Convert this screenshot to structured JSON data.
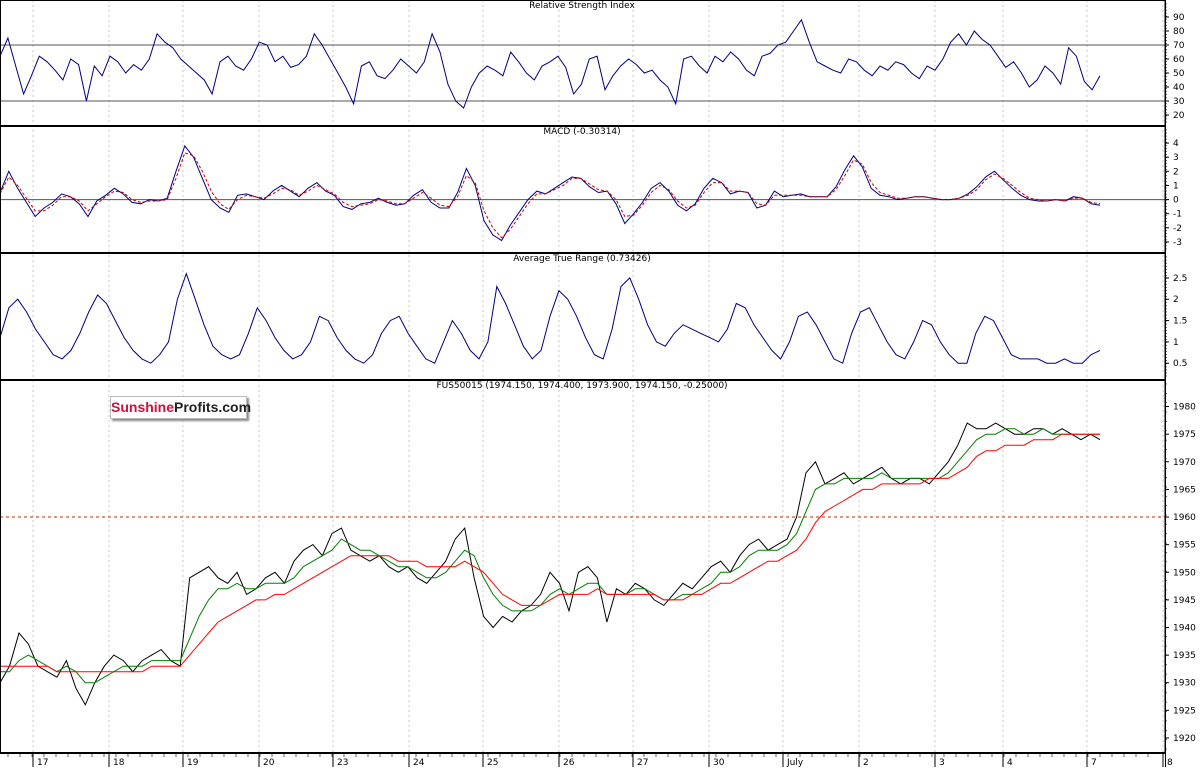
{
  "logo": {
    "part1": "Sunshine",
    "part2": "Profits.com",
    "color1": "#d0103a",
    "color2": "#222222"
  },
  "colors": {
    "grid": "#c8c8c8",
    "border": "#000000",
    "indicator": "#000080",
    "signal": "#cc0000",
    "price": "#000000",
    "ma_fast": "#008000",
    "ma_slow": "#ff0000",
    "reference": "#aa3300"
  },
  "x_axis": {
    "labels": [
      "17",
      "18",
      "19",
      "20",
      "23",
      "24",
      "25",
      "26",
      "27",
      "30",
      "July",
      "2",
      "3",
      "4",
      "7",
      "8"
    ]
  },
  "chart_data": [
    {
      "type": "line",
      "title": "Relative Strength Index",
      "ylim": [
        15,
        95
      ],
      "yticks": [
        20,
        30,
        40,
        50,
        60,
        70,
        80,
        90
      ],
      "reference_lines": [
        30,
        70
      ],
      "series": [
        {
          "values": [
            62,
            75,
            55,
            35,
            48,
            62,
            58,
            52,
            45,
            60,
            56,
            30,
            55,
            48,
            62,
            58,
            50,
            56,
            52,
            60,
            78,
            72,
            68,
            60,
            55,
            50,
            45,
            35,
            58,
            62,
            55,
            52,
            60,
            72,
            70,
            58,
            62,
            54,
            56,
            62,
            78,
            70,
            60,
            50,
            40,
            28,
            55,
            58,
            48,
            46,
            52,
            60,
            55,
            50,
            58,
            78,
            65,
            42,
            30,
            25,
            40,
            50,
            55,
            52,
            48,
            65,
            58,
            50,
            45,
            55,
            58,
            62,
            54,
            35,
            42,
            60,
            62,
            38,
            48,
            55,
            60,
            56,
            50,
            52,
            45,
            40,
            28,
            60,
            62,
            55,
            50,
            62,
            58,
            65,
            60,
            52,
            48,
            62,
            64,
            70,
            72,
            80,
            88,
            72,
            58,
            55,
            52,
            50,
            60,
            58,
            52,
            48,
            55,
            52,
            58,
            56,
            50,
            46,
            55,
            52,
            60,
            72,
            78,
            70,
            80,
            74,
            70,
            62,
            54,
            58,
            50,
            40,
            45,
            55,
            50,
            42,
            68,
            62,
            44,
            38,
            48
          ]
        }
      ]
    },
    {
      "type": "line",
      "title": "MACD (-0.30314)",
      "ylim": [
        -3.5,
        4.5
      ],
      "yticks": [
        -3,
        -2,
        -1,
        0,
        1,
        2,
        3,
        4
      ],
      "reference_lines": [
        0
      ],
      "series": [
        {
          "values": [
            0.5,
            2.0,
            0.8,
            -0.2,
            -1.2,
            -0.6,
            -0.2,
            0.4,
            0.2,
            -0.3,
            -1.2,
            -0.1,
            0.3,
            0.8,
            0.4,
            -0.2,
            -0.3,
            0.0,
            -0.1,
            0.1,
            2.0,
            3.8,
            3.0,
            1.5,
            0.0,
            -0.6,
            -0.9,
            0.3,
            0.4,
            0.2,
            0.0,
            0.6,
            1.0,
            0.6,
            0.2,
            0.8,
            1.2,
            0.6,
            0.3,
            -0.5,
            -0.7,
            -0.3,
            -0.2,
            0.1,
            -0.2,
            -0.4,
            -0.3,
            0.3,
            0.7,
            -0.2,
            -0.6,
            -0.6,
            0.5,
            2.2,
            1.0,
            -1.5,
            -2.5,
            -2.9,
            -1.8,
            -0.9,
            0.0,
            0.6,
            0.4,
            0.8,
            1.2,
            1.6,
            1.5,
            0.9,
            0.5,
            0.6,
            -0.3,
            -1.7,
            -1.0,
            -0.2,
            0.8,
            1.2,
            0.6,
            -0.4,
            -0.8,
            -0.3,
            0.8,
            1.5,
            1.2,
            0.4,
            0.6,
            0.5,
            -0.6,
            -0.4,
            0.6,
            0.2,
            0.3,
            0.4,
            0.2,
            0.2,
            0.2,
            0.9,
            2.1,
            3.1,
            2.3,
            0.8,
            0.3,
            0.2,
            0.0,
            0.1,
            0.2,
            0.2,
            0.1,
            0.0,
            0.0,
            0.1,
            0.4,
            0.9,
            1.6,
            2.0,
            1.4,
            0.8,
            0.3,
            0.0,
            -0.1,
            -0.1,
            0.0,
            -0.1,
            0.2,
            0.1,
            -0.3,
            -0.4
          ]
        },
        {
          "values": [
            0.4,
            1.6,
            1.0,
            0.1,
            -0.8,
            -0.8,
            -0.4,
            0.2,
            0.2,
            -0.1,
            -0.8,
            -0.3,
            0.2,
            0.6,
            0.5,
            0.0,
            -0.2,
            -0.1,
            -0.1,
            0.0,
            1.5,
            3.3,
            3.1,
            2.0,
            0.6,
            -0.3,
            -0.7,
            0.0,
            0.3,
            0.2,
            0.1,
            0.4,
            0.8,
            0.7,
            0.3,
            0.6,
            1.0,
            0.7,
            0.4,
            -0.2,
            -0.5,
            -0.4,
            -0.3,
            0.0,
            -0.1,
            -0.3,
            -0.3,
            0.1,
            0.5,
            0.1,
            -0.4,
            -0.5,
            0.2,
            1.7,
            1.2,
            -0.8,
            -2.0,
            -2.7,
            -2.1,
            -1.2,
            -0.3,
            0.4,
            0.4,
            0.7,
            1.0,
            1.5,
            1.5,
            1.1,
            0.7,
            0.6,
            0.0,
            -1.2,
            -1.1,
            -0.4,
            0.5,
            1.0,
            0.7,
            -0.1,
            -0.6,
            -0.4,
            0.5,
            1.2,
            1.2,
            0.6,
            0.6,
            0.5,
            -0.3,
            -0.4,
            0.3,
            0.3,
            0.3,
            0.3,
            0.2,
            0.2,
            0.2,
            0.7,
            1.7,
            2.8,
            2.5,
            1.2,
            0.5,
            0.3,
            0.1,
            0.1,
            0.2,
            0.2,
            0.1,
            0.0,
            0.0,
            0.1,
            0.3,
            0.7,
            1.4,
            1.8,
            1.5,
            1.0,
            0.5,
            0.1,
            0.0,
            -0.1,
            0.0,
            -0.1,
            0.1,
            0.1,
            -0.2,
            -0.3
          ]
        }
      ]
    },
    {
      "type": "line",
      "title": "Average True Range (0.73426)",
      "ylim": [
        0.2,
        2.85
      ],
      "yticks": [
        0.5,
        1.0,
        1.5,
        2.0,
        2.5
      ],
      "series": [
        {
          "values": [
            1.1,
            1.8,
            2.0,
            1.7,
            1.3,
            1.0,
            0.7,
            0.6,
            0.8,
            1.2,
            1.7,
            2.1,
            1.9,
            1.5,
            1.1,
            0.8,
            0.6,
            0.5,
            0.7,
            1.0,
            2.0,
            2.6,
            2.0,
            1.4,
            0.9,
            0.7,
            0.6,
            0.7,
            1.2,
            1.8,
            1.5,
            1.1,
            0.8,
            0.6,
            0.7,
            1.0,
            1.6,
            1.5,
            1.1,
            0.8,
            0.6,
            0.5,
            0.7,
            1.2,
            1.5,
            1.6,
            1.2,
            0.9,
            0.6,
            0.5,
            1.0,
            1.5,
            1.2,
            0.8,
            0.6,
            1.0,
            2.3,
            1.9,
            1.4,
            0.9,
            0.6,
            0.8,
            1.6,
            2.2,
            2.0,
            1.6,
            1.1,
            0.7,
            0.6,
            1.3,
            2.3,
            2.5,
            2.0,
            1.4,
            1.0,
            0.9,
            1.2,
            1.4,
            1.3,
            1.2,
            1.1,
            1.0,
            1.3,
            1.9,
            1.8,
            1.4,
            1.1,
            0.8,
            0.6,
            1.0,
            1.6,
            1.7,
            1.4,
            1.0,
            0.6,
            0.5,
            1.2,
            1.7,
            1.8,
            1.4,
            1.0,
            0.7,
            0.6,
            1.0,
            1.5,
            1.4,
            1.0,
            0.7,
            0.5,
            0.5,
            1.2,
            1.6,
            1.5,
            1.1,
            0.7,
            0.6,
            0.6,
            0.6,
            0.5,
            0.5,
            0.6,
            0.5,
            0.5,
            0.7,
            0.8
          ]
        }
      ]
    },
    {
      "type": "line",
      "title": "FUS50015 (1974.150, 1974.400, 1973.900, 1974.150, -0.25000)",
      "ylim": [
        1918,
        1983
      ],
      "yticks": [
        1920,
        1925,
        1930,
        1935,
        1940,
        1945,
        1950,
        1955,
        1960,
        1965,
        1970,
        1975,
        1980
      ],
      "reference_lines": [
        1960
      ],
      "series": [
        {
          "values": [
            1930,
            1933,
            1939,
            1937,
            1933,
            1932,
            1931,
            1934,
            1929,
            1926,
            1930,
            1933,
            1935,
            1934,
            1932,
            1934,
            1935,
            1936,
            1934,
            1933,
            1949,
            1950,
            1951,
            1949,
            1948,
            1950,
            1946,
            1947,
            1949,
            1950,
            1948,
            1952,
            1954,
            1955,
            1953,
            1957,
            1958,
            1954,
            1953,
            1952,
            1953,
            1951,
            1950,
            1951,
            1949,
            1948,
            1950,
            1952,
            1956,
            1958,
            1949,
            1942,
            1940,
            1942,
            1941,
            1943,
            1944,
            1946,
            1950,
            1948,
            1943,
            1950,
            1951,
            1949,
            1941,
            1947,
            1946,
            1948,
            1947,
            1945,
            1944,
            1946,
            1948,
            1947,
            1949,
            1951,
            1952,
            1950,
            1953,
            1955,
            1956,
            1954,
            1955,
            1956,
            1960,
            1968,
            1970,
            1966,
            1967,
            1968,
            1966,
            1967,
            1968,
            1969,
            1967,
            1966,
            1967,
            1967,
            1966,
            1968,
            1970,
            1973,
            1977,
            1976,
            1976,
            1977,
            1976,
            1975,
            1975,
            1976,
            1976,
            1975,
            1976,
            1975,
            1974,
            1975,
            1974
          ]
        },
        {
          "values": [
            1932,
            1932,
            1934,
            1935,
            1934,
            1933,
            1932,
            1933,
            1932,
            1930,
            1930,
            1931,
            1932,
            1933,
            1933,
            1933,
            1934,
            1934,
            1934,
            1934,
            1938,
            1942,
            1945,
            1947,
            1947,
            1948,
            1947,
            1947,
            1948,
            1948,
            1948,
            1949,
            1951,
            1952,
            1953,
            1954,
            1956,
            1955,
            1954,
            1954,
            1953,
            1952,
            1951,
            1951,
            1950,
            1949,
            1949,
            1950,
            1952,
            1954,
            1953,
            1949,
            1946,
            1944,
            1943,
            1943,
            1943,
            1944,
            1946,
            1947,
            1946,
            1947,
            1948,
            1948,
            1946,
            1946,
            1946,
            1947,
            1947,
            1946,
            1945,
            1945,
            1946,
            1946,
            1947,
            1948,
            1950,
            1950,
            1951,
            1953,
            1954,
            1954,
            1954,
            1955,
            1957,
            1961,
            1965,
            1966,
            1966,
            1967,
            1967,
            1967,
            1967,
            1968,
            1967,
            1967,
            1967,
            1967,
            1967,
            1967,
            1968,
            1970,
            1972,
            1974,
            1975,
            1975,
            1976,
            1976,
            1975,
            1975,
            1976,
            1975,
            1975,
            1975,
            1975,
            1975,
            1975
          ]
        },
        {
          "values": [
            1933,
            1933,
            1933,
            1933,
            1933,
            1933,
            1932,
            1932,
            1932,
            1932,
            1932,
            1932,
            1932,
            1932,
            1932,
            1932,
            1933,
            1933,
            1933,
            1933,
            1935,
            1937,
            1939,
            1941,
            1942,
            1943,
            1944,
            1945,
            1945,
            1946,
            1946,
            1947,
            1948,
            1949,
            1950,
            1951,
            1952,
            1953,
            1953,
            1953,
            1953,
            1953,
            1952,
            1952,
            1952,
            1951,
            1951,
            1951,
            1951,
            1952,
            1951,
            1950,
            1948,
            1946,
            1945,
            1944,
            1944,
            1944,
            1945,
            1946,
            1946,
            1946,
            1946,
            1947,
            1946,
            1946,
            1946,
            1946,
            1946,
            1946,
            1945,
            1945,
            1945,
            1946,
            1946,
            1947,
            1948,
            1948,
            1949,
            1950,
            1951,
            1952,
            1952,
            1953,
            1954,
            1956,
            1959,
            1961,
            1962,
            1963,
            1964,
            1965,
            1965,
            1966,
            1966,
            1966,
            1966,
            1966,
            1967,
            1967,
            1967,
            1968,
            1969,
            1971,
            1972,
            1972,
            1973,
            1973,
            1973,
            1974,
            1974,
            1974,
            1975,
            1975,
            1975,
            1975,
            1975
          ]
        }
      ]
    }
  ]
}
